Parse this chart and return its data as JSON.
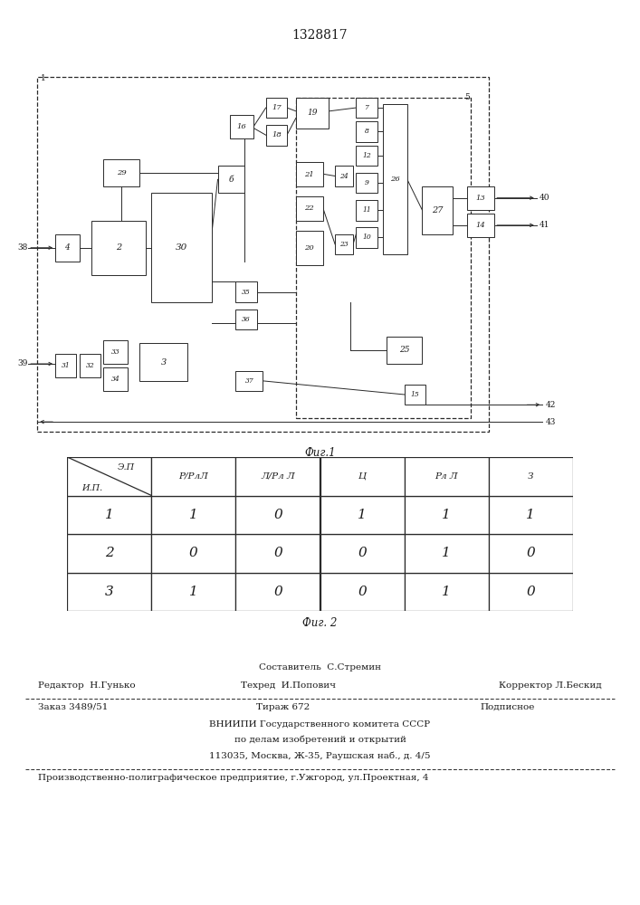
{
  "patent_number": "1328817",
  "fig1_caption": "Фиг.1",
  "fig2_caption": "Фиг. 2",
  "table_col_headers": [
    "Р/РлЛ",
    "Л/Рл Л",
    "Ц",
    "Рл Л",
    "З"
  ],
  "table_header_top": "Э.П",
  "table_header_bot": "И.П.",
  "table_data": [
    [
      "1",
      "1",
      "0",
      "1",
      "1",
      "1"
    ],
    [
      "2",
      "0",
      "0",
      "0",
      "1",
      "0"
    ],
    [
      "3",
      "1",
      "0",
      "0",
      "1",
      "0"
    ]
  ],
  "footer_composer": "Составитель  С.Стремин",
  "footer_editor": "Редактор  Н.Гунько",
  "footer_techred": "Техред  И.Попович",
  "footer_corrector": "Корректор Л.Бескид",
  "footer_order": "Заказ 3489/51",
  "footer_tirazh": "Тираж 672",
  "footer_podpis": "Подписное",
  "footer_vniipи": "ВНИИПИ Государственного комитета СССР",
  "footer_po_delam": "по делам изобретений и открытий",
  "footer_address": "113035, Москва, Ж-35, Раушская наб., д. 4/5",
  "footer_plant": "Производственно-полиграфическое предприятие, г.Ужгород, ул.Проектная, 4",
  "lc": "#2a2a2a",
  "tc": "#1a1a1a"
}
